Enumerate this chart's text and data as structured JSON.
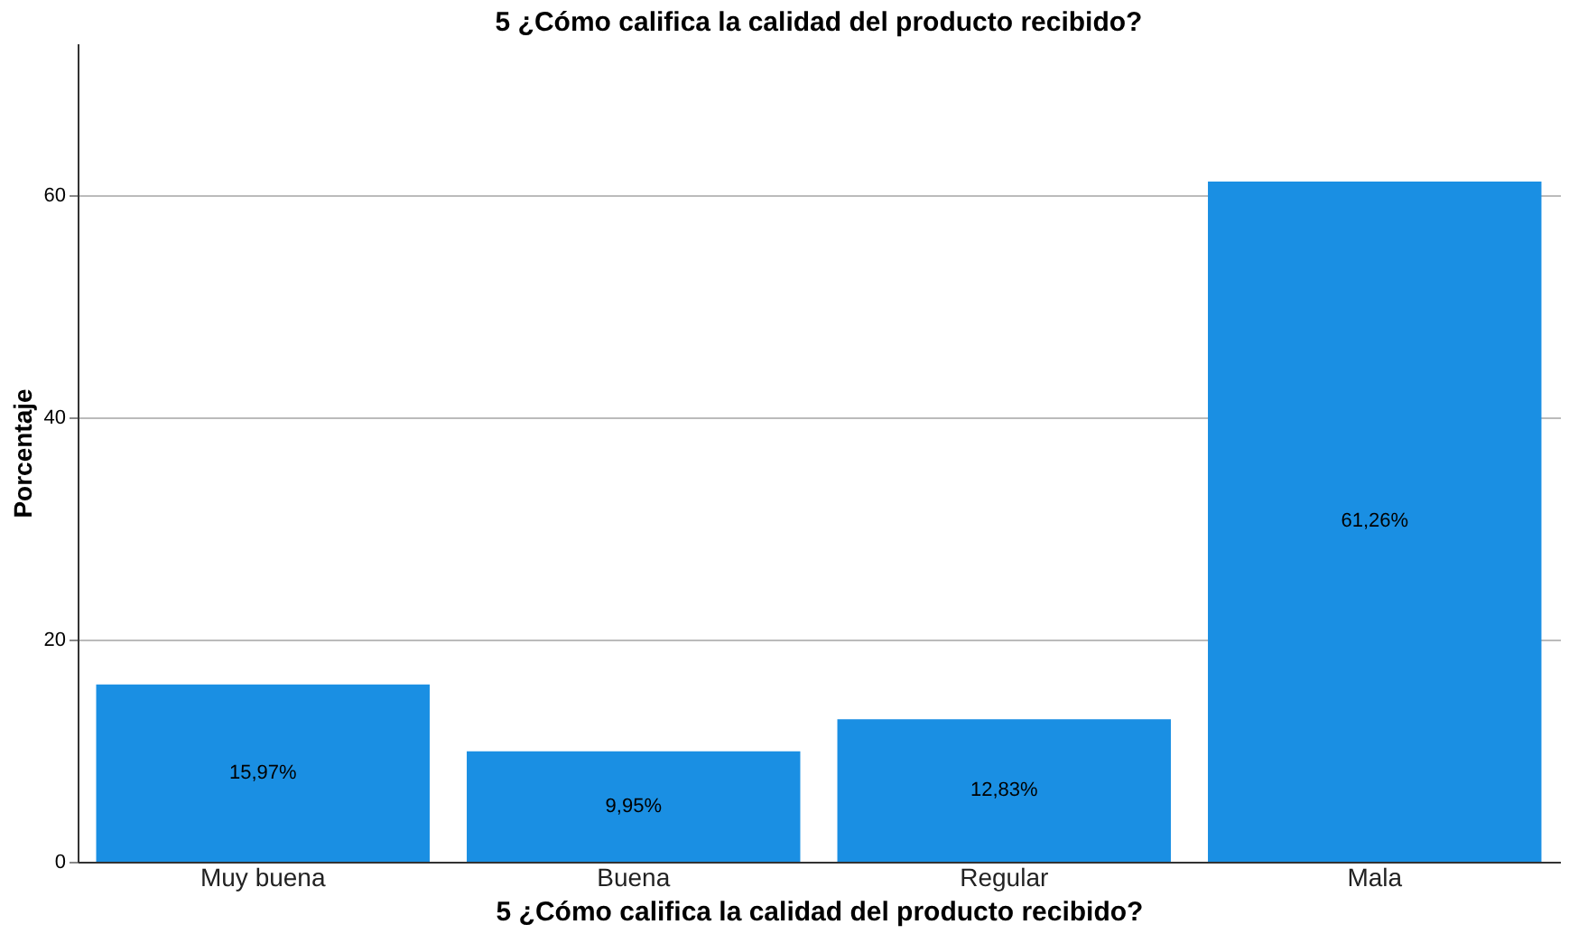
{
  "chart_data": {
    "type": "bar",
    "title": "5 ¿Cómo califica la calidad del producto recibido?",
    "xlabel": "5 ¿Cómo califica la calidad del producto recibido?",
    "ylabel": "Porcentaje",
    "categories": [
      "Muy buena",
      "Buena",
      "Regular",
      "Mala"
    ],
    "values": [
      15.97,
      9.95,
      12.83,
      61.26
    ],
    "value_labels": [
      "15,97%",
      "9,95%",
      "12,83%",
      "61,26%"
    ],
    "color": "#1a8fe3",
    "ylim": [
      0,
      73.7
    ],
    "yticks": [
      0,
      20,
      40,
      60
    ],
    "grid": "y"
  }
}
